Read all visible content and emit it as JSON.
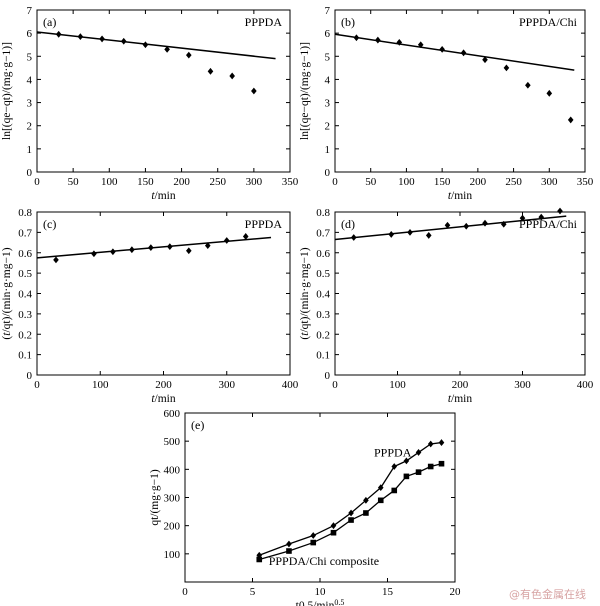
{
  "chart_data": [
    {
      "id": "a",
      "type": "scatter",
      "panel_label": "(a)",
      "tag": "PPPDA",
      "xlabel": "t/min",
      "ylabel": "ln[(qe−qt)/(mg·g−1)]",
      "xlim": [
        0,
        350
      ],
      "ylim": [
        0,
        7
      ],
      "xticks": [
        0,
        50,
        100,
        150,
        200,
        250,
        300,
        350
      ],
      "yticks": [
        0,
        1,
        2,
        3,
        4,
        5,
        6,
        7
      ],
      "points": [
        [
          30,
          5.95
        ],
        [
          60,
          5.85
        ],
        [
          90,
          5.75
        ],
        [
          120,
          5.65
        ],
        [
          150,
          5.5
        ],
        [
          180,
          5.3
        ],
        [
          210,
          5.05
        ],
        [
          240,
          4.35
        ],
        [
          270,
          4.15
        ],
        [
          300,
          3.5
        ]
      ],
      "fit_line": [
        [
          0,
          6.05
        ],
        [
          330,
          4.9
        ]
      ]
    },
    {
      "id": "b",
      "type": "scatter",
      "panel_label": "(b)",
      "tag": "PPPDA/Chi",
      "xlabel": "t/min",
      "ylabel": "ln[(qe−qt)/(mg·g−1)]",
      "xlim": [
        0,
        350
      ],
      "ylim": [
        0,
        7
      ],
      "xticks": [
        0,
        50,
        100,
        150,
        200,
        250,
        300,
        350
      ],
      "yticks": [
        0,
        1,
        2,
        3,
        4,
        5,
        6,
        7
      ],
      "points": [
        [
          30,
          5.8
        ],
        [
          60,
          5.7
        ],
        [
          90,
          5.6
        ],
        [
          120,
          5.5
        ],
        [
          150,
          5.3
        ],
        [
          180,
          5.15
        ],
        [
          210,
          4.85
        ],
        [
          240,
          4.5
        ],
        [
          270,
          3.75
        ],
        [
          300,
          3.4
        ],
        [
          330,
          2.25
        ]
      ],
      "fit_line": [
        [
          0,
          5.95
        ],
        [
          335,
          4.4
        ]
      ]
    },
    {
      "id": "c",
      "type": "scatter",
      "panel_label": "(c)",
      "tag": "PPPDA",
      "xlabel": "t/min",
      "ylabel": "(t/qt)/(min·g·mg−1)",
      "xlim": [
        0,
        400
      ],
      "ylim": [
        0,
        0.8
      ],
      "xticks": [
        0,
        100,
        200,
        300,
        400
      ],
      "yticks": [
        0,
        0.1,
        0.2,
        0.3,
        0.4,
        0.5,
        0.6,
        0.7,
        0.8
      ],
      "points": [
        [
          30,
          0.565
        ],
        [
          90,
          0.595
        ],
        [
          120,
          0.605
        ],
        [
          150,
          0.615
        ],
        [
          180,
          0.625
        ],
        [
          210,
          0.63
        ],
        [
          240,
          0.61
        ],
        [
          270,
          0.635
        ],
        [
          300,
          0.66
        ],
        [
          330,
          0.68
        ]
      ],
      "fit_line": [
        [
          0,
          0.575
        ],
        [
          370,
          0.675
        ]
      ]
    },
    {
      "id": "d",
      "type": "scatter",
      "panel_label": "(d)",
      "tag": "PPPDA/Chi",
      "xlabel": "t/min",
      "ylabel": "(t/qt)/(min·g·mg−1)",
      "xlim": [
        0,
        400
      ],
      "ylim": [
        0,
        0.8
      ],
      "xticks": [
        0,
        100,
        200,
        300,
        400
      ],
      "yticks": [
        0,
        0.1,
        0.2,
        0.3,
        0.4,
        0.5,
        0.6,
        0.7,
        0.8
      ],
      "points": [
        [
          30,
          0.675
        ],
        [
          90,
          0.69
        ],
        [
          120,
          0.7
        ],
        [
          150,
          0.685
        ],
        [
          180,
          0.735
        ],
        [
          210,
          0.73
        ],
        [
          240,
          0.745
        ],
        [
          270,
          0.74
        ],
        [
          300,
          0.77
        ],
        [
          330,
          0.775
        ],
        [
          360,
          0.805
        ]
      ],
      "fit_line": [
        [
          0,
          0.665
        ],
        [
          370,
          0.78
        ]
      ]
    },
    {
      "id": "e",
      "type": "line",
      "panel_label": "(e)",
      "xlabel": "t0.5/min0.5",
      "ylabel": "qt/(mg·g−1)",
      "xlim": [
        0,
        20
      ],
      "ylim": [
        0,
        600
      ],
      "xticks": [
        0,
        5,
        10,
        15,
        20
      ],
      "yticks": [
        100,
        200,
        300,
        400,
        500,
        600
      ],
      "series": [
        {
          "name": "PPPDA",
          "marker": "diamond",
          "points": [
            [
              5.5,
              95
            ],
            [
              7.7,
              135
            ],
            [
              9.5,
              165
            ],
            [
              11,
              200
            ],
            [
              12.3,
              245
            ],
            [
              13.4,
              290
            ],
            [
              14.5,
              335
            ],
            [
              15.5,
              410
            ],
            [
              16.4,
              430
            ],
            [
              17.3,
              460
            ],
            [
              18.2,
              490
            ],
            [
              19,
              495
            ]
          ]
        },
        {
          "name": "PPPDA/Chi composite",
          "marker": "square",
          "points": [
            [
              5.5,
              80
            ],
            [
              7.7,
              110
            ],
            [
              9.5,
              140
            ],
            [
              11,
              175
            ],
            [
              12.3,
              220
            ],
            [
              13.4,
              245
            ],
            [
              14.5,
              290
            ],
            [
              15.5,
              325
            ],
            [
              16.4,
              375
            ],
            [
              17.3,
              390
            ],
            [
              18.2,
              410
            ],
            [
              19,
              420
            ]
          ]
        }
      ]
    }
  ],
  "watermark": "@有色金属在线"
}
